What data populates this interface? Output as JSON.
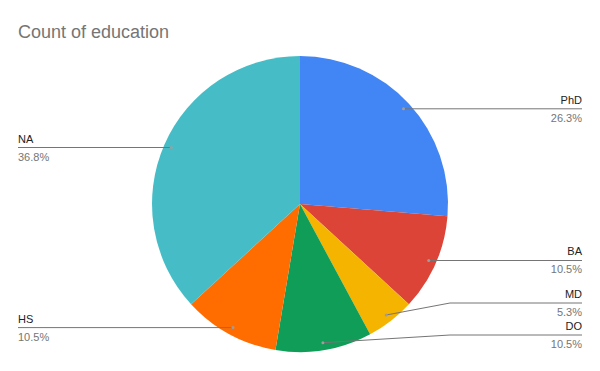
{
  "chart_data": {
    "type": "pie",
    "title": "Count of education",
    "categories": [
      "PhD",
      "BA",
      "MD",
      "DO",
      "HS",
      "NA"
    ],
    "values": [
      26.3,
      10.5,
      5.3,
      10.5,
      10.5,
      36.8
    ],
    "value_labels": [
      "26.3%",
      "10.5%",
      "5.3%",
      "10.5%",
      "10.5%",
      "36.8%"
    ],
    "colors": [
      "#4285f4",
      "#db4437",
      "#f4b400",
      "#0f9d58",
      "#ff6d01",
      "#46bdc6"
    ],
    "data_labels": true
  }
}
